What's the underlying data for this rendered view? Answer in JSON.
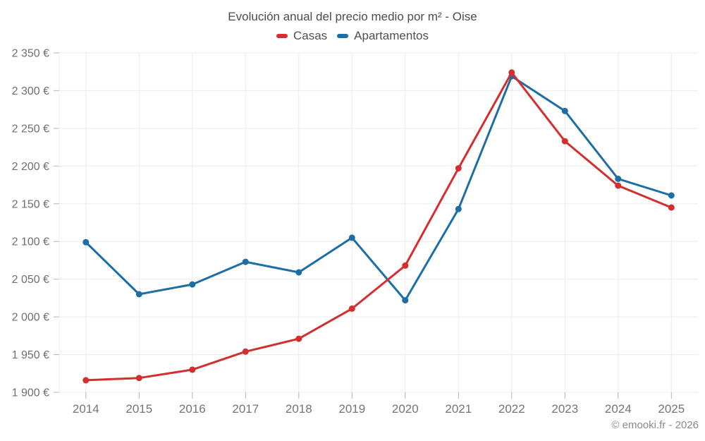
{
  "chart_data": {
    "type": "line",
    "title": "Evolución anual del precio medio por m² - Oise",
    "categories": [
      "2014",
      "2015",
      "2016",
      "2017",
      "2018",
      "2019",
      "2020",
      "2021",
      "2022",
      "2023",
      "2024",
      "2025"
    ],
    "series": [
      {
        "name": "Casas",
        "color": "#d32f2f",
        "values": [
          1916,
          1919,
          1930,
          1954,
          1971,
          2011,
          2068,
          2197,
          2324,
          2233,
          2174,
          2145
        ]
      },
      {
        "name": "Apartamentos",
        "color": "#1c6ea4",
        "values": [
          2099,
          2030,
          2043,
          2073,
          2059,
          2105,
          2022,
          2143,
          2319,
          2273,
          2183,
          2161
        ]
      }
    ],
    "y_axis": {
      "min": 1900,
      "max": 2350,
      "step": 50,
      "unit": "€",
      "tick_labels": [
        "1 900 €",
        "1 950 €",
        "2 000 €",
        "2 050 €",
        "2 100 €",
        "2 150 €",
        "2 200 €",
        "2 250 €",
        "2 300 €",
        "2 350 €"
      ]
    },
    "xlabel": "",
    "ylabel": "",
    "ylim": [
      1900,
      2350
    ],
    "grid": true,
    "legend_position": "top"
  },
  "footer": {
    "credit": "© emooki.fr - 2026"
  }
}
